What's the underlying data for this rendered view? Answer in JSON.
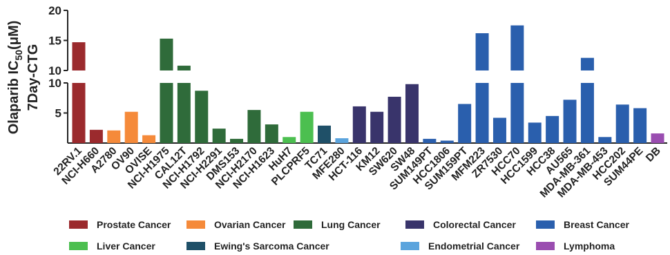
{
  "chart_data": {
    "type": "bar",
    "ylabel_line1": "Olaparib IC",
    "ylabel_sub": "50",
    "ylabel_unit": "(μM)",
    "ylabel_line2": "7Day-CTG",
    "y_axis_break": true,
    "ylim_lower": [
      0,
      10
    ],
    "ylim_upper": [
      10,
      20
    ],
    "yticks_lower": [
      "5",
      "10"
    ],
    "yticks_upper": [
      "10",
      "15",
      "20"
    ],
    "categories": [
      "22RV.1",
      "NCI-H660",
      "A2780",
      "OV90",
      "OVISE",
      "NCI-H1975",
      "CAL12T",
      "NCI-H1792",
      "NCI-H2291",
      "DMS153",
      "NCI-H2170",
      "NCI-H1623",
      "HuH7",
      "PLCPRF5",
      "TC71",
      "MFE280",
      "HCT-116",
      "KM12",
      "SW620",
      "SW48",
      "SUM149PT",
      "HCC1806",
      "SUM159PT",
      "MFM223",
      "ZR7530",
      "HCC70",
      "HCC1599",
      "HCC38",
      "AU565",
      "MDA-MB-361",
      "MDA-MB-453",
      "HCC202",
      "SUM44PE",
      "DB"
    ],
    "values": [
      14.7,
      2.2,
      2.1,
      5.2,
      1.3,
      15.3,
      10.8,
      8.7,
      2.4,
      0.7,
      5.5,
      3.1,
      1.0,
      5.2,
      2.9,
      0.8,
      6.1,
      5.2,
      7.7,
      9.8,
      0.7,
      0.4,
      6.5,
      16.2,
      4.2,
      17.5,
      3.4,
      4.5,
      7.2,
      12.1,
      1.0,
      6.4,
      5.8,
      1.6
    ],
    "groups": [
      0,
      0,
      1,
      1,
      1,
      2,
      2,
      2,
      2,
      2,
      2,
      2,
      3,
      3,
      4,
      5,
      6,
      6,
      6,
      6,
      7,
      7,
      7,
      7,
      7,
      7,
      7,
      7,
      7,
      7,
      7,
      7,
      7,
      8
    ],
    "legend": [
      {
        "label": "Prostate Cancer",
        "color": "#9b2a2d"
      },
      {
        "label": "Ovarian Cancer",
        "color": "#f58a3a"
      },
      {
        "label": "Lung Cancer",
        "color": "#2f6b3a"
      },
      {
        "label": "Liver Cancer",
        "color": "#4cbf50"
      },
      {
        "label": "Ewing's Sarcoma Cancer",
        "color": "#1f5068"
      },
      {
        "label": "Endometrial Cancer",
        "color": "#5ba4dd"
      },
      {
        "label": "Colorectal Cancer",
        "color": "#39346b"
      },
      {
        "label": "Breast Cancer",
        "color": "#2a5fad"
      },
      {
        "label": "Lymphoma",
        "color": "#9a4db0"
      }
    ]
  }
}
